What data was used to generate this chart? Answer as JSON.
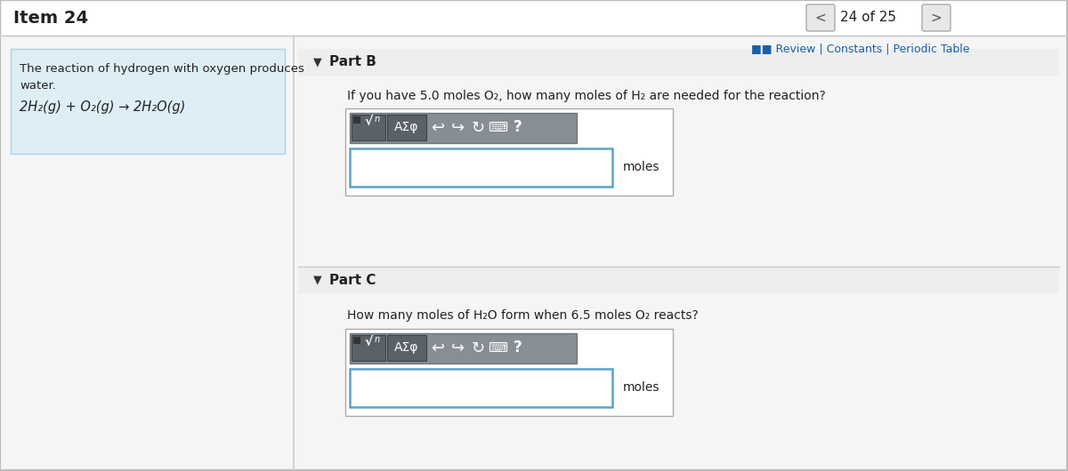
{
  "title": "Item 24",
  "nav_text": "24 of 25",
  "bg_color": "#f5f5f5",
  "white": "#ffffff",
  "left_panel_bg": "#ddeef6",
  "left_panel_text_line1": "The reaction of hydrogen with oxygen produces",
  "left_panel_text_line2": "water.",
  "left_panel_formula": "2H₂(g) + O₂(g) → 2H₂O(g)",
  "review_text": "■■ Review | Constants | Periodic Table",
  "partB_label": "Part B",
  "partB_question": "If you have 5.0 moles O₂, how many moles of H₂ are needed for the reaction?",
  "partC_label": "Part C",
  "partC_question": "How many moles of H₂O form when 6.5 moles O₂ reacts?",
  "moles_text": "moles",
  "toolbar_bg": "#888e95",
  "toolbar_border": "#6c757d",
  "input_box_border": "#5ba3c9",
  "divider_color": "#cccccc",
  "header_border": "#cccccc",
  "nav_btn_color": "#e8e8e8",
  "nav_btn_border": "#aaaaaa",
  "part_header_bg": "#eeeeee"
}
